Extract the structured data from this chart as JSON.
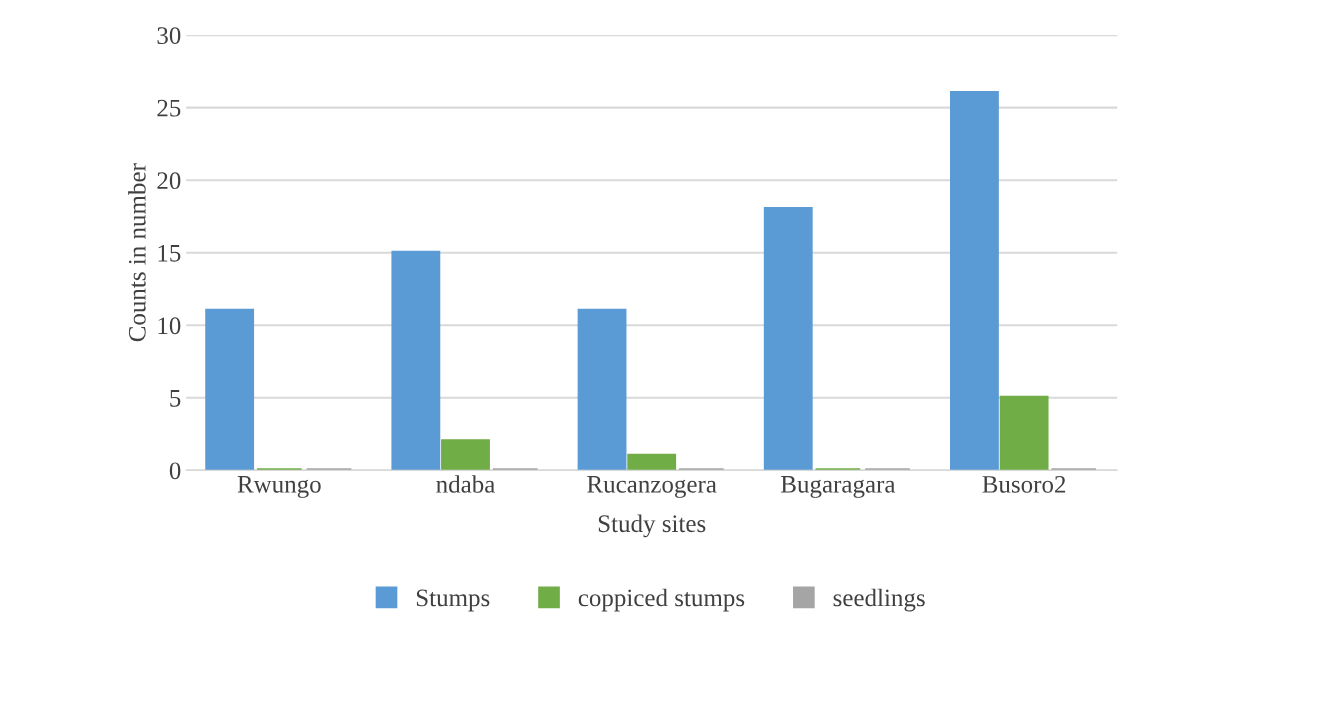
{
  "chart_data": {
    "type": "bar",
    "xlabel": "Study sites",
    "ylabel": "Counts in number",
    "categories": [
      "Rwungo",
      "ndaba",
      "Rucanzogera",
      "Bugaragara",
      "Busoro2"
    ],
    "series": [
      {
        "name": "Stumps",
        "color": "#5b9bd5",
        "values": [
          11,
          15,
          11,
          18,
          26
        ]
      },
      {
        "name": "coppiced stumps",
        "color": "#70ad47",
        "values": [
          0,
          2,
          1,
          0,
          5
        ]
      },
      {
        "name": "seedlings",
        "color": "#a5a5a5",
        "values": [
          0,
          0,
          0,
          0,
          0
        ]
      }
    ],
    "ylim": [
      0,
      30
    ],
    "yticks": [
      0,
      5,
      10,
      15,
      20,
      25,
      30
    ],
    "grid": "y",
    "legend": "bottom"
  }
}
